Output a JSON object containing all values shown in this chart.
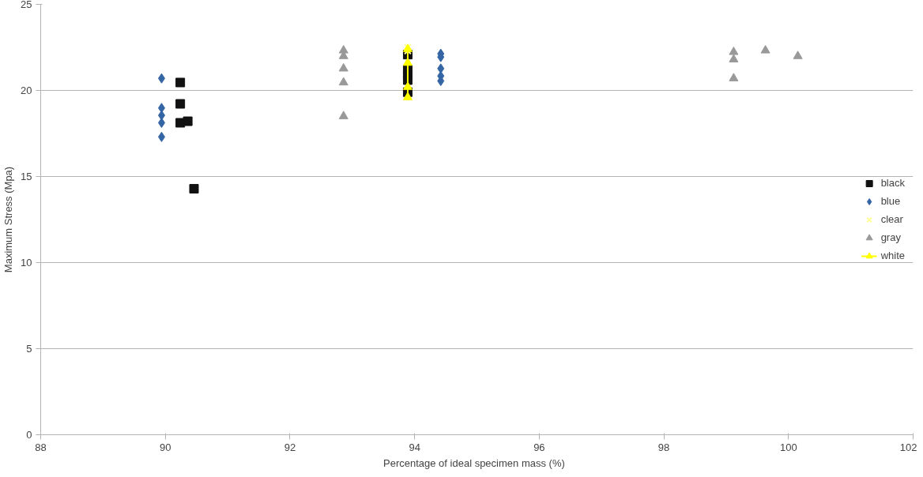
{
  "chart_data": {
    "type": "scatter",
    "xlabel": "Percentage of  ideal specimen  mass (%)",
    "ylabel": "Maximum Stress (Mpa)",
    "xlim": [
      88,
      102
    ],
    "xticks": [
      88,
      90,
      92,
      94,
      96,
      98,
      100,
      102
    ],
    "ylim": [
      0,
      25
    ],
    "yticks": [
      0,
      5,
      10,
      15,
      20,
      25
    ],
    "grid": "y",
    "legend": "right",
    "series": [
      {
        "name": "black",
        "color": "#111111",
        "marker": "square",
        "x": [
          90.24,
          90.24,
          90.24,
          90.36,
          90.46,
          93.89,
          93.89,
          93.89,
          93.89,
          93.89
        ],
        "values": [
          20.46,
          19.22,
          18.12,
          18.21,
          14.29,
          22.08,
          21.2,
          20.9,
          20.6,
          19.9
        ]
      },
      {
        "name": "blue",
        "color": "#3465a4",
        "marker": "diamond",
        "x": [
          89.94,
          89.94,
          89.94,
          89.94,
          89.94,
          94.42,
          94.42,
          94.42,
          94.42,
          94.42
        ],
        "values": [
          20.7,
          18.98,
          18.55,
          18.12,
          17.3,
          22.13,
          21.94,
          21.27,
          20.84,
          20.55
        ]
      },
      {
        "name": "clear",
        "color": "#ffff99",
        "marker": "cross",
        "x": [
          93.89,
          93.89
        ],
        "values": [
          22.5,
          22.3
        ]
      },
      {
        "name": "gray",
        "color": "#999999",
        "marker": "triangle",
        "x": [
          92.86,
          92.86,
          92.86,
          92.86,
          92.86,
          99.12,
          99.12,
          99.12,
          99.63,
          100.15
        ],
        "values": [
          22.32,
          21.99,
          21.27,
          20.46,
          18.5,
          22.23,
          21.8,
          20.7,
          22.32,
          21.99
        ]
      },
      {
        "name": "white",
        "type": "line",
        "color": "#ffff00",
        "marker": "triangle",
        "x": [
          93.89,
          93.89,
          93.89,
          93.89
        ],
        "values": [
          22.4,
          21.6,
          20.2,
          19.6
        ]
      }
    ]
  }
}
